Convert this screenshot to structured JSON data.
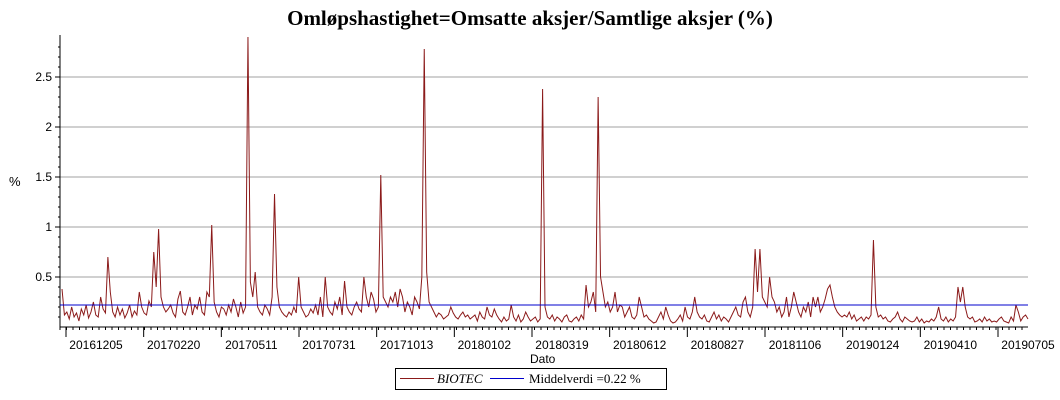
{
  "chart_data": {
    "type": "line",
    "title": "Omløpshastighet=Omsatte aksjer/Samtlige aksjer (%)",
    "xlabel": "Dato",
    "ylabel": "%",
    "ylim": [
      0,
      2.9
    ],
    "yticks": [
      0.5,
      1,
      1.5,
      2,
      2.5
    ],
    "xtick_labels": [
      "20161205",
      "20170220",
      "20170511",
      "20170731",
      "20171013",
      "20180102",
      "20180319",
      "20180612",
      "20180827",
      "20181106",
      "20190124",
      "20190410",
      "20190705"
    ],
    "grid": true,
    "series": [
      {
        "name": "BIOTEC",
        "color": "#8b1a1a",
        "values": [
          0.38,
          0.12,
          0.15,
          0.08,
          0.2,
          0.1,
          0.14,
          0.06,
          0.18,
          0.12,
          0.22,
          0.09,
          0.15,
          0.25,
          0.12,
          0.1,
          0.3,
          0.18,
          0.14,
          0.7,
          0.35,
          0.15,
          0.1,
          0.2,
          0.12,
          0.18,
          0.09,
          0.14,
          0.22,
          0.1,
          0.16,
          0.12,
          0.35,
          0.2,
          0.14,
          0.12,
          0.26,
          0.2,
          0.75,
          0.4,
          0.98,
          0.3,
          0.2,
          0.15,
          0.18,
          0.22,
          0.14,
          0.1,
          0.28,
          0.36,
          0.15,
          0.12,
          0.2,
          0.3,
          0.12,
          0.22,
          0.18,
          0.3,
          0.15,
          0.12,
          0.35,
          0.3,
          1.02,
          0.25,
          0.15,
          0.1,
          0.2,
          0.18,
          0.12,
          0.22,
          0.15,
          0.28,
          0.2,
          0.1,
          0.25,
          0.14,
          0.2,
          2.9,
          0.45,
          0.3,
          0.55,
          0.2,
          0.15,
          0.12,
          0.22,
          0.18,
          0.12,
          0.3,
          1.33,
          0.4,
          0.2,
          0.15,
          0.12,
          0.1,
          0.15,
          0.12,
          0.2,
          0.14,
          0.5,
          0.2,
          0.15,
          0.1,
          0.12,
          0.18,
          0.14,
          0.22,
          0.12,
          0.3,
          0.1,
          0.5,
          0.2,
          0.15,
          0.12,
          0.25,
          0.18,
          0.3,
          0.12,
          0.46,
          0.2,
          0.15,
          0.12,
          0.2,
          0.25,
          0.18,
          0.15,
          0.5,
          0.3,
          0.2,
          0.35,
          0.28,
          0.15,
          0.2,
          1.52,
          0.3,
          0.25,
          0.2,
          0.3,
          0.25,
          0.35,
          0.2,
          0.38,
          0.3,
          0.15,
          0.25,
          0.2,
          0.12,
          0.3,
          0.25,
          0.18,
          0.5,
          2.78,
          0.55,
          0.25,
          0.2,
          0.15,
          0.1,
          0.14,
          0.12,
          0.08,
          0.1,
          0.12,
          0.2,
          0.14,
          0.1,
          0.08,
          0.12,
          0.15,
          0.1,
          0.12,
          0.08,
          0.1,
          0.12,
          0.06,
          0.15,
          0.1,
          0.08,
          0.2,
          0.12,
          0.1,
          0.18,
          0.12,
          0.08,
          0.05,
          0.1,
          0.06,
          0.08,
          0.22,
          0.1,
          0.06,
          0.12,
          0.05,
          0.08,
          0.15,
          0.1,
          0.06,
          0.08,
          0.1,
          0.05,
          0.08,
          2.38,
          0.2,
          0.1,
          0.08,
          0.12,
          0.06,
          0.1,
          0.08,
          0.05,
          0.1,
          0.12,
          0.06,
          0.05,
          0.08,
          0.1,
          0.06,
          0.12,
          0.08,
          0.42,
          0.2,
          0.25,
          0.35,
          0.15,
          2.3,
          0.5,
          0.35,
          0.2,
          0.25,
          0.15,
          0.2,
          0.35,
          0.15,
          0.22,
          0.2,
          0.1,
          0.15,
          0.2,
          0.1,
          0.08,
          0.12,
          0.3,
          0.2,
          0.1,
          0.12,
          0.08,
          0.06,
          0.04,
          0.05,
          0.1,
          0.15,
          0.08,
          0.2,
          0.12,
          0.06,
          0.04,
          0.05,
          0.08,
          0.12,
          0.06,
          0.2,
          0.1,
          0.08,
          0.15,
          0.3,
          0.15,
          0.1,
          0.08,
          0.12,
          0.06,
          0.05,
          0.1,
          0.15,
          0.08,
          0.12,
          0.06,
          0.1,
          0.08,
          0.05,
          0.1,
          0.15,
          0.2,
          0.12,
          0.1,
          0.25,
          0.3,
          0.15,
          0.1,
          0.2,
          0.78,
          0.35,
          0.78,
          0.3,
          0.25,
          0.2,
          0.5,
          0.3,
          0.25,
          0.15,
          0.2,
          0.1,
          0.15,
          0.3,
          0.1,
          0.2,
          0.35,
          0.25,
          0.15,
          0.1,
          0.2,
          0.15,
          0.25,
          0.1,
          0.3,
          0.2,
          0.3,
          0.15,
          0.2,
          0.28,
          0.38,
          0.42,
          0.3,
          0.2,
          0.15,
          0.12,
          0.1,
          0.12,
          0.1,
          0.15,
          0.08,
          0.12,
          0.06,
          0.08,
          0.1,
          0.06,
          0.1,
          0.08,
          0.12,
          0.87,
          0.2,
          0.1,
          0.12,
          0.08,
          0.1,
          0.06,
          0.05,
          0.08,
          0.1,
          0.15,
          0.08,
          0.05,
          0.1,
          0.08,
          0.06,
          0.05,
          0.06,
          0.1,
          0.05,
          0.08,
          0.04,
          0.06,
          0.05,
          0.08,
          0.06,
          0.1,
          0.2,
          0.08,
          0.06,
          0.1,
          0.05,
          0.08,
          0.06,
          0.1,
          0.4,
          0.25,
          0.4,
          0.2,
          0.1,
          0.08,
          0.1,
          0.05,
          0.06,
          0.08,
          0.05,
          0.1,
          0.06,
          0.08,
          0.05,
          0.06,
          0.05,
          0.08,
          0.1,
          0.06,
          0.05,
          0.04,
          0.1,
          0.06,
          0.22,
          0.15,
          0.06,
          0.1,
          0.12,
          0.08
        ]
      },
      {
        "name": "Middelverdi =0.22 %",
        "color": "#0000cc",
        "values": [
          0.22,
          0.22
        ]
      }
    ]
  }
}
